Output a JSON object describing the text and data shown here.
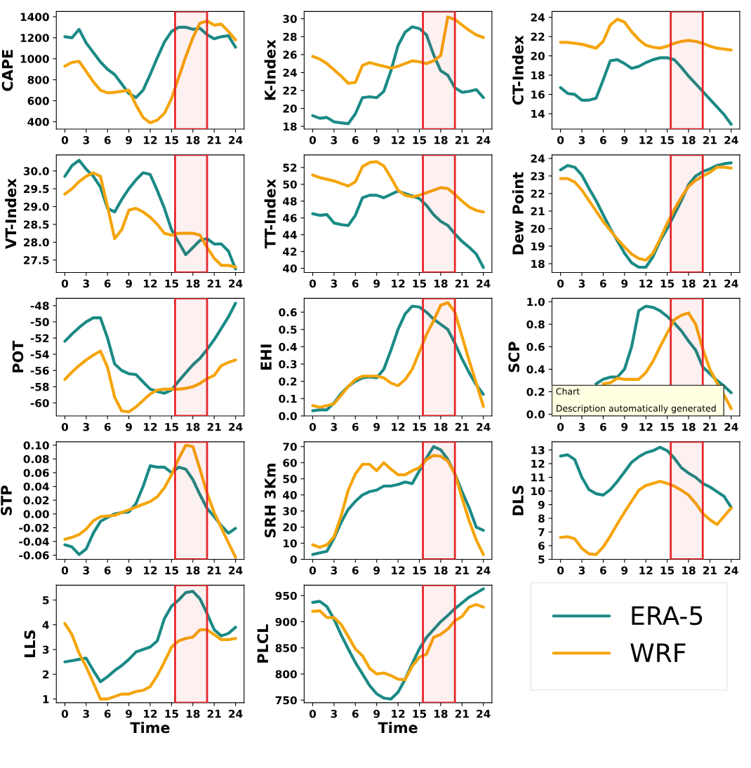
{
  "chart_data": [
    {
      "type": "line",
      "ylabel": "CAPE",
      "legend": "bottom right",
      "x": [
        0,
        1,
        2,
        3,
        4,
        5,
        6,
        7,
        8,
        9,
        10,
        11,
        12,
        13,
        14,
        15,
        16,
        17,
        18,
        19,
        20,
        21,
        22,
        23,
        24
      ],
      "xlim": [
        -1.2,
        25.2
      ],
      "xticks": [
        0,
        3,
        6,
        9,
        12,
        15,
        18,
        21,
        24
      ],
      "ylim": [
        330,
        1450
      ],
      "yticks": [
        400,
        600,
        800,
        1000,
        1200,
        1400
      ],
      "bands": [
        {
          "axis": "x",
          "from": 15.5,
          "to": 20,
          "color": "#e8262a"
        }
      ],
      "series": [
        {
          "name": "ERA-5",
          "color": "#1a8a85",
          "values": [
            1210,
            1200,
            1280,
            1150,
            1060,
            970,
            900,
            850,
            760,
            670,
            630,
            700,
            850,
            1010,
            1160,
            1260,
            1300,
            1300,
            1280,
            1290,
            1230,
            1190,
            1210,
            1220,
            1110
          ]
        },
        {
          "name": "WRF",
          "color": "#f5a40a",
          "values": [
            930,
            965,
            975,
            880,
            780,
            700,
            675,
            680,
            690,
            700,
            560,
            440,
            390,
            415,
            480,
            620,
            820,
            1020,
            1200,
            1340,
            1360,
            1320,
            1330,
            1260,
            1180
          ]
        }
      ]
    },
    {
      "type": "line",
      "ylabel": "K-Index",
      "x": [
        0,
        1,
        2,
        3,
        4,
        5,
        6,
        7,
        8,
        9,
        10,
        11,
        12,
        13,
        14,
        15,
        16,
        17,
        18,
        19,
        20,
        21,
        22,
        23,
        24
      ],
      "xlim": [
        -1.2,
        25.2
      ],
      "xticks": [
        0,
        3,
        6,
        9,
        12,
        15,
        18,
        21,
        24
      ],
      "ylim": [
        17.7,
        30.8
      ],
      "yticks": [
        18,
        20,
        22,
        24,
        26,
        28,
        30
      ],
      "bands": [
        {
          "axis": "x",
          "from": 15.5,
          "to": 20,
          "color": "#e8262a"
        }
      ],
      "series": [
        {
          "color": "#1a8a85",
          "values": [
            19.2,
            18.9,
            19.0,
            18.5,
            18.4,
            18.3,
            19.4,
            21.2,
            21.3,
            21.2,
            21.9,
            24.2,
            27.0,
            28.5,
            29.1,
            28.9,
            28.2,
            26.0,
            24.2,
            23.7,
            22.3,
            21.8,
            21.9,
            22.1,
            21.2
          ]
        },
        {
          "color": "#f5a40a",
          "values": [
            25.8,
            25.5,
            25.0,
            24.3,
            23.6,
            22.8,
            22.9,
            24.8,
            25.1,
            24.9,
            24.7,
            24.5,
            24.7,
            25.0,
            25.3,
            25.2,
            25.0,
            25.3,
            25.9,
            30.2,
            29.9,
            29.3,
            28.7,
            28.2,
            27.9
          ]
        }
      ]
    },
    {
      "type": "line",
      "ylabel": "CT-Index",
      "x": [
        0,
        1,
        2,
        3,
        4,
        5,
        6,
        7,
        8,
        9,
        10,
        11,
        12,
        13,
        14,
        15,
        16,
        17,
        18,
        19,
        20,
        21,
        22,
        23,
        24
      ],
      "xlim": [
        -1.2,
        25.2
      ],
      "xticks": [
        0,
        3,
        6,
        9,
        12,
        15,
        18,
        21,
        24
      ],
      "ylim": [
        12.4,
        24.6
      ],
      "yticks": [
        14,
        16,
        18,
        20,
        22,
        24
      ],
      "bands": [
        {
          "axis": "x",
          "from": 15.5,
          "to": 20,
          "color": "#e8262a"
        }
      ],
      "series": [
        {
          "color": "#1a8a85",
          "values": [
            16.7,
            16.1,
            16.0,
            15.4,
            15.4,
            15.6,
            17.5,
            19.5,
            19.6,
            19.2,
            18.7,
            18.9,
            19.3,
            19.6,
            19.8,
            19.8,
            19.6,
            18.8,
            17.9,
            17.1,
            16.3,
            15.5,
            14.7,
            13.9,
            12.9
          ]
        },
        {
          "color": "#f5a40a",
          "values": [
            21.4,
            21.4,
            21.3,
            21.2,
            21.0,
            20.8,
            21.5,
            23.2,
            23.8,
            23.5,
            22.5,
            21.7,
            21.1,
            20.9,
            20.8,
            21.0,
            21.3,
            21.5,
            21.6,
            21.5,
            21.3,
            21.0,
            20.8,
            20.7,
            20.6
          ]
        }
      ]
    },
    {
      "type": "line",
      "ylabel": "VT-Index",
      "x": [
        0,
        1,
        2,
        3,
        4,
        5,
        6,
        7,
        8,
        9,
        10,
        11,
        12,
        13,
        14,
        15,
        16,
        17,
        18,
        19,
        20,
        21,
        22,
        23,
        24
      ],
      "xlim": [
        -1.2,
        25.2
      ],
      "xticks": [
        0,
        3,
        6,
        9,
        12,
        15,
        18,
        21,
        24
      ],
      "ylim": [
        27.15,
        30.45
      ],
      "yticks": [
        27.5,
        {
          "value": 28,
          "label": "28.0"
        },
        28.5,
        {
          "value": 29,
          "label": "29.0"
        },
        29.5,
        {
          "value": 30,
          "label": "30.0"
        }
      ],
      "bands": [
        {
          "axis": "x",
          "from": 15.5,
          "to": 20,
          "color": "#e8262a"
        }
      ],
      "series": [
        {
          "color": "#1a8a85",
          "values": [
            29.85,
            30.15,
            30.3,
            30.05,
            29.85,
            29.55,
            28.95,
            28.85,
            29.2,
            29.5,
            29.75,
            29.95,
            29.9,
            29.45,
            28.95,
            28.35,
            28.0,
            27.65,
            27.85,
            28.05,
            28.1,
            27.95,
            27.95,
            27.75,
            27.25
          ]
        },
        {
          "color": "#f5a40a",
          "values": [
            29.35,
            29.5,
            29.7,
            29.85,
            29.95,
            29.85,
            29.0,
            28.1,
            28.35,
            28.9,
            28.95,
            28.85,
            28.7,
            28.5,
            28.25,
            28.2,
            28.25,
            28.25,
            28.25,
            28.2,
            27.85,
            27.55,
            27.35,
            27.35,
            27.3
          ]
        }
      ]
    },
    {
      "type": "line",
      "ylabel": "TT-Index",
      "x": [
        0,
        1,
        2,
        3,
        4,
        5,
        6,
        7,
        8,
        9,
        10,
        11,
        12,
        13,
        14,
        15,
        16,
        17,
        18,
        19,
        20,
        21,
        22,
        23,
        24
      ],
      "xlim": [
        -1.2,
        25.2
      ],
      "xticks": [
        0,
        3,
        6,
        9,
        12,
        15,
        18,
        21,
        24
      ],
      "ylim": [
        39.5,
        53.5
      ],
      "yticks": [
        40,
        42,
        44,
        46,
        48,
        50,
        52
      ],
      "bands": [
        {
          "axis": "x",
          "from": 15.5,
          "to": 20,
          "color": "#e8262a"
        }
      ],
      "series": [
        {
          "color": "#1a8a85",
          "values": [
            46.5,
            46.3,
            46.4,
            45.4,
            45.2,
            45.1,
            46.3,
            48.4,
            48.7,
            48.7,
            48.4,
            48.8,
            49.2,
            48.9,
            48.6,
            48.3,
            47.5,
            46.4,
            45.6,
            45.1,
            44.1,
            43.2,
            42.5,
            41.7,
            40.1
          ]
        },
        {
          "color": "#f5a40a",
          "values": [
            51.1,
            50.8,
            50.6,
            50.4,
            50.1,
            49.8,
            50.3,
            52.1,
            52.6,
            52.7,
            52.2,
            50.8,
            49.3,
            48.7,
            48.5,
            48.7,
            49.0,
            49.3,
            49.6,
            49.5,
            48.8,
            48.0,
            47.3,
            46.9,
            46.7
          ]
        }
      ]
    },
    {
      "type": "line",
      "ylabel": "Dew Point",
      "x": [
        0,
        1,
        2,
        3,
        4,
        5,
        6,
        7,
        8,
        9,
        10,
        11,
        12,
        13,
        14,
        15,
        16,
        17,
        18,
        19,
        20,
        21,
        22,
        23,
        24
      ],
      "xlim": [
        -1.2,
        25.2
      ],
      "xticks": [
        0,
        3,
        6,
        9,
        12,
        15,
        18,
        21,
        24
      ],
      "ylim": [
        17.5,
        24.2
      ],
      "yticks": [
        18,
        19,
        20,
        21,
        22,
        23,
        24
      ],
      "bands": [
        {
          "axis": "x",
          "from": 15.5,
          "to": 20,
          "color": "#e8262a"
        }
      ],
      "series": [
        {
          "color": "#1a8a85",
          "values": [
            23.35,
            23.6,
            23.5,
            23.05,
            22.3,
            21.6,
            20.8,
            20.0,
            19.3,
            18.6,
            18.05,
            17.8,
            17.8,
            18.4,
            19.3,
            20.0,
            20.8,
            21.6,
            22.5,
            23.0,
            23.25,
            23.4,
            23.6,
            23.7,
            23.75
          ]
        },
        {
          "color": "#f5a40a",
          "values": [
            22.85,
            22.85,
            22.65,
            22.2,
            21.6,
            21.0,
            20.4,
            19.9,
            19.4,
            18.95,
            18.55,
            18.3,
            18.2,
            18.6,
            19.4,
            20.3,
            21.1,
            21.8,
            22.4,
            22.75,
            23.0,
            23.2,
            23.5,
            23.5,
            23.45
          ]
        }
      ]
    },
    {
      "type": "line",
      "ylabel": "POT",
      "x": [
        0,
        1,
        2,
        3,
        4,
        5,
        6,
        7,
        8,
        9,
        10,
        11,
        12,
        13,
        14,
        15,
        16,
        17,
        18,
        19,
        20,
        21,
        22,
        23,
        24
      ],
      "xlim": [
        -1.2,
        25.2
      ],
      "xticks": [
        0,
        3,
        6,
        9,
        12,
        15,
        18,
        21,
        24
      ],
      "ylim": [
        -61.6,
        -47.1
      ],
      "yticks": [
        -60,
        -58,
        -56,
        -54,
        -52,
        -50,
        -48
      ],
      "bands": [
        {
          "axis": "x",
          "from": 15.5,
          "to": 20,
          "color": "#e8262a"
        }
      ],
      "series": [
        {
          "color": "#1a8a85",
          "values": [
            -52.4,
            -51.5,
            -50.7,
            -50.0,
            -49.5,
            -49.5,
            -52.0,
            -55.2,
            -56.0,
            -56.4,
            -56.5,
            -57.4,
            -58.3,
            -58.6,
            -58.8,
            -58.4,
            -57.3,
            -56.3,
            -55.3,
            -54.5,
            -53.4,
            -52.2,
            -50.8,
            -49.4,
            -47.7
          ]
        },
        {
          "color": "#f5a40a",
          "values": [
            -57.1,
            -56.2,
            -55.4,
            -54.7,
            -54.1,
            -53.6,
            -55.6,
            -59.3,
            -61.0,
            -61.1,
            -60.5,
            -59.7,
            -58.9,
            -58.4,
            -58.3,
            -58.3,
            -58.3,
            -58.2,
            -58.0,
            -57.6,
            -57.0,
            -56.6,
            -55.4,
            -55.0,
            -54.7
          ]
        }
      ]
    },
    {
      "type": "line",
      "ylabel": "EHI",
      "x": [
        0,
        1,
        2,
        3,
        4,
        5,
        6,
        7,
        8,
        9,
        10,
        11,
        12,
        13,
        14,
        15,
        16,
        17,
        18,
        19,
        20,
        21,
        22,
        23,
        24
      ],
      "xlim": [
        -1.2,
        25.2
      ],
      "xticks": [
        0,
        3,
        6,
        9,
        12,
        15,
        18,
        21,
        24
      ],
      "ylim": [
        0,
        0.68
      ],
      "yticks": [
        {
          "value": 0,
          "label": "0.0"
        },
        0.1,
        0.2,
        0.3,
        0.4,
        0.5,
        0.6
      ],
      "bands": [
        {
          "axis": "x",
          "from": 15.5,
          "to": 20,
          "color": "#e8262a"
        }
      ],
      "series": [
        {
          "color": "#1a8a85",
          "values": [
            0.03,
            0.035,
            0.035,
            0.075,
            0.13,
            0.17,
            0.2,
            0.22,
            0.225,
            0.22,
            0.27,
            0.38,
            0.5,
            0.59,
            0.635,
            0.63,
            0.6,
            0.56,
            0.53,
            0.5,
            0.42,
            0.33,
            0.25,
            0.18,
            0.125
          ]
        },
        {
          "color": "#f5a40a",
          "values": [
            0.06,
            0.05,
            0.06,
            0.07,
            0.12,
            0.17,
            0.21,
            0.23,
            0.23,
            0.23,
            0.22,
            0.19,
            0.175,
            0.21,
            0.27,
            0.37,
            0.47,
            0.55,
            0.64,
            0.655,
            0.6,
            0.46,
            0.32,
            0.19,
            0.055
          ]
        }
      ]
    },
    {
      "type": "line",
      "ylabel": "SCP",
      "xlim": [
        -1.2,
        25.2
      ],
      "xticks": [
        0,
        3,
        6,
        9,
        12,
        15,
        18,
        21,
        24
      ],
      "ylim": [
        -0.015,
        1.03
      ],
      "yticks": [
        {
          "value": 0,
          "label": "0.0"
        },
        0.2,
        0.4,
        0.6,
        0.8,
        {
          "value": 1,
          "label": "1.0"
        }
      ],
      "bands": [
        {
          "axis": "x",
          "from": 15.5,
          "to": 20,
          "color": "#e8262a"
        }
      ],
      "annotations": [
        "Chart\n\nDescription automatically generated"
      ],
      "series": [
        {
          "color": "#1a8a85",
          "x": [
            5,
            6,
            7,
            8,
            9,
            10,
            11,
            12,
            13,
            14,
            15,
            16,
            17,
            18,
            19,
            20,
            21,
            22,
            23,
            24
          ],
          "values": [
            0.27,
            0.31,
            0.33,
            0.33,
            0.4,
            0.6,
            0.92,
            0.96,
            0.95,
            0.92,
            0.87,
            0.81,
            0.74,
            0.65,
            0.57,
            0.42,
            0.36,
            0.3,
            0.25,
            0.19
          ]
        },
        {
          "color": "#f5a40a",
          "x": [
            6,
            7,
            8,
            9,
            10,
            11,
            12,
            13,
            14,
            15,
            16,
            17,
            18,
            19,
            20,
            21,
            22,
            23,
            24
          ],
          "values": [
            0.27,
            0.28,
            0.32,
            0.31,
            0.31,
            0.31,
            0.37,
            0.47,
            0.6,
            0.72,
            0.84,
            0.88,
            0.9,
            0.8,
            0.58,
            0.4,
            0.28,
            0.17,
            0.05
          ]
        }
      ]
    },
    {
      "type": "line",
      "ylabel": "STP",
      "x": [
        0,
        1,
        2,
        3,
        4,
        5,
        6,
        7,
        8,
        9,
        10,
        11,
        12,
        13,
        14,
        15,
        16,
        17,
        18,
        19,
        20,
        21,
        22,
        23,
        24
      ],
      "xlim": [
        -1.2,
        25.2
      ],
      "xticks": [
        0,
        3,
        6,
        9,
        12,
        15,
        18,
        21,
        24
      ],
      "ylim": [
        -0.066,
        0.105
      ],
      "yticks": [
        -0.06,
        -0.04,
        -0.02,
        {
          "value": 0,
          "label": "0.00"
        },
        0.02,
        0.04,
        0.06,
        0.08,
        {
          "value": 0.1,
          "label": "0.10"
        }
      ],
      "bands": [
        {
          "axis": "x",
          "from": 15.5,
          "to": 20,
          "color": "#e8262a"
        }
      ],
      "series": [
        {
          "color": "#1a8a85",
          "values": [
            -0.045,
            -0.048,
            -0.059,
            -0.051,
            -0.028,
            -0.011,
            -0.005,
            0.0,
            0.002,
            0.003,
            0.015,
            0.04,
            0.07,
            0.068,
            0.068,
            0.06,
            0.068,
            0.065,
            0.05,
            0.028,
            0.008,
            -0.004,
            -0.017,
            -0.028,
            -0.021
          ]
        },
        {
          "color": "#f5a40a",
          "values": [
            -0.037,
            -0.034,
            -0.03,
            -0.022,
            -0.01,
            -0.004,
            -0.003,
            -0.002,
            0.002,
            0.006,
            0.01,
            0.014,
            0.018,
            0.025,
            0.038,
            0.057,
            0.08,
            0.1,
            0.098,
            0.065,
            0.03,
            0.002,
            -0.02,
            -0.042,
            -0.063
          ]
        }
      ]
    },
    {
      "type": "line",
      "ylabel": "SRH 3Km",
      "x": [
        0,
        1,
        2,
        3,
        4,
        5,
        6,
        7,
        8,
        9,
        10,
        11,
        12,
        13,
        14,
        15,
        16,
        17,
        18,
        19,
        20,
        21,
        22,
        23,
        24
      ],
      "xlim": [
        -1.2,
        25.2
      ],
      "xticks": [
        0,
        3,
        6,
        9,
        12,
        15,
        18,
        21,
        24
      ],
      "ylim": [
        0,
        73
      ],
      "yticks": [
        0,
        10,
        20,
        30,
        40,
        50,
        60,
        70
      ],
      "bands": [
        {
          "axis": "x",
          "from": 15.5,
          "to": 20,
          "color": "#e8262a"
        }
      ],
      "series": [
        {
          "color": "#1a8a85",
          "values": [
            3,
            4,
            5,
            13,
            23,
            31,
            36,
            40,
            42,
            43,
            45.5,
            45.5,
            46.5,
            48,
            47,
            55,
            63,
            70,
            68,
            62,
            53,
            42,
            32,
            20,
            18
          ]
        },
        {
          "color": "#f5a40a",
          "values": [
            9,
            7.5,
            9,
            14,
            27,
            43,
            53,
            59,
            59,
            55,
            60,
            56,
            52.5,
            52.5,
            55,
            57,
            62,
            64.5,
            64,
            61,
            53,
            38,
            24,
            12,
            3
          ]
        }
      ]
    },
    {
      "type": "line",
      "ylabel": "DLS",
      "x": [
        0,
        1,
        2,
        3,
        4,
        5,
        6,
        7,
        8,
        9,
        10,
        11,
        12,
        13,
        14,
        15,
        16,
        17,
        18,
        19,
        20,
        21,
        22,
        23,
        24
      ],
      "xlim": [
        -1.2,
        25.2
      ],
      "xticks": [
        0,
        3,
        6,
        9,
        12,
        15,
        18,
        21,
        24
      ],
      "ylim": [
        5,
        13.6
      ],
      "yticks": [
        5,
        6,
        7,
        8,
        9,
        10,
        11,
        12,
        13
      ],
      "bands": [
        {
          "axis": "x",
          "from": 15.5,
          "to": 20,
          "color": "#e8262a"
        }
      ],
      "series": [
        {
          "color": "#1a8a85",
          "values": [
            12.55,
            12.65,
            12.3,
            11.0,
            10.1,
            9.8,
            9.7,
            10.1,
            10.7,
            11.4,
            12.1,
            12.5,
            12.8,
            12.95,
            13.2,
            12.95,
            12.4,
            11.7,
            11.3,
            11.0,
            10.55,
            10.3,
            9.95,
            9.6,
            8.8
          ]
        },
        {
          "color": "#f5a40a",
          "values": [
            6.6,
            6.65,
            6.5,
            5.8,
            5.4,
            5.35,
            5.9,
            6.7,
            7.6,
            8.45,
            9.25,
            10.05,
            10.4,
            10.55,
            10.7,
            10.55,
            10.35,
            10.05,
            9.7,
            9.1,
            8.35,
            7.9,
            7.55,
            8.15,
            8.75
          ]
        }
      ]
    },
    {
      "type": "line",
      "ylabel": "LLS",
      "xlabel": "Time",
      "x": [
        0,
        1,
        2,
        3,
        4,
        5,
        6,
        7,
        8,
        9,
        10,
        11,
        12,
        13,
        14,
        15,
        16,
        17,
        18,
        19,
        20,
        21,
        22,
        23,
        24
      ],
      "xlim": [
        -1.2,
        25.2
      ],
      "xticks": [
        0,
        3,
        6,
        9,
        12,
        15,
        18,
        21,
        24
      ],
      "ylim": [
        0.85,
        5.6
      ],
      "yticks": [
        1,
        2,
        3,
        4,
        5
      ],
      "bands": [
        {
          "axis": "x",
          "from": 15.5,
          "to": 20,
          "color": "#e8262a"
        }
      ],
      "series": [
        {
          "color": "#1a8a85",
          "values": [
            2.5,
            2.55,
            2.6,
            2.65,
            2.15,
            1.7,
            1.9,
            2.15,
            2.35,
            2.6,
            2.9,
            3.0,
            3.1,
            3.35,
            4.25,
            4.75,
            5.0,
            5.3,
            5.35,
            5.05,
            4.45,
            3.8,
            3.55,
            3.65,
            3.9
          ]
        },
        {
          "color": "#f5a40a",
          "values": [
            4.05,
            3.6,
            2.85,
            2.3,
            1.65,
            1.0,
            1.0,
            1.1,
            1.2,
            1.2,
            1.3,
            1.35,
            1.5,
            1.95,
            2.5,
            3.1,
            3.35,
            3.45,
            3.5,
            3.8,
            3.8,
            3.6,
            3.4,
            3.4,
            3.45
          ]
        }
      ]
    },
    {
      "type": "line",
      "ylabel": "PLCL",
      "xlabel": "Time",
      "x": [
        0,
        1,
        2,
        3,
        4,
        5,
        6,
        7,
        8,
        9,
        10,
        11,
        12,
        13,
        14,
        15,
        16,
        17,
        18,
        19,
        20,
        21,
        22,
        23,
        24
      ],
      "xlim": [
        -1.2,
        25.2
      ],
      "xticks": [
        0,
        3,
        6,
        9,
        12,
        15,
        18,
        21,
        24
      ],
      "ylim": [
        745,
        970
      ],
      "yticks": [
        750,
        800,
        850,
        900,
        950
      ],
      "bands": [
        {
          "axis": "x",
          "from": 15.5,
          "to": 20,
          "color": "#e8262a"
        }
      ],
      "series": [
        {
          "color": "#1a8a85",
          "values": [
            937,
            939,
            929,
            905,
            875,
            848,
            822,
            800,
            778,
            762,
            754,
            752,
            765,
            790,
            820,
            848,
            870,
            885,
            900,
            912,
            925,
            936,
            947,
            955,
            963
          ]
        },
        {
          "color": "#f5a40a",
          "values": [
            920,
            921,
            908,
            908,
            895,
            872,
            848,
            835,
            811,
            800,
            802,
            797,
            790,
            789,
            815,
            832,
            838,
            870,
            876,
            886,
            902,
            910,
            928,
            933,
            928
          ]
        }
      ]
    }
  ]
}
